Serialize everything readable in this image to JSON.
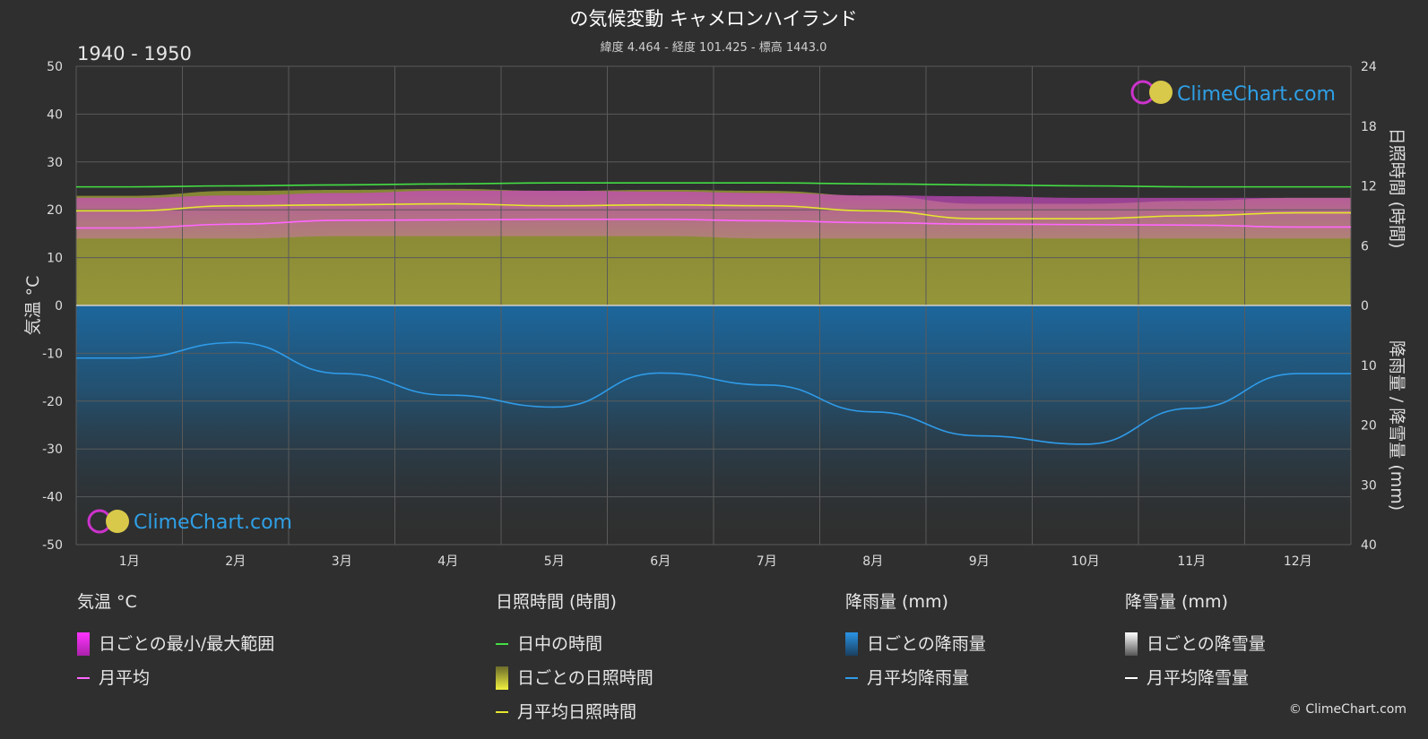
{
  "header": {
    "title": "の気候変動 キャメロンハイランド",
    "subtitle": "緯度 4.464 - 経度 101.425 - 標高 1443.0",
    "period": "1940 - 1950"
  },
  "brand": {
    "logo_text": "ClimeChart.com",
    "copyright": "© ClimeChart.com"
  },
  "chart_data": {
    "type": "area",
    "title": "の気候変動 キャメロンハイランド",
    "subtitle": "緯度 4.464 - 経度 101.425 - 標高 1443.0",
    "categories": [
      "1月",
      "2月",
      "3月",
      "4月",
      "5月",
      "6月",
      "7月",
      "8月",
      "9月",
      "10月",
      "11月",
      "12月"
    ],
    "y_left": {
      "label": "気温 °C",
      "range": [
        -50,
        50
      ],
      "ticks": [
        50,
        40,
        30,
        20,
        10,
        0,
        -10,
        -20,
        -30,
        -40,
        -50
      ]
    },
    "y_right_top": {
      "label": "日照時間 (時間)",
      "range": [
        0,
        24
      ],
      "ticks": [
        24,
        18,
        12,
        6,
        0
      ]
    },
    "y_right_bottom": {
      "label": "降雨量 / 降雪量 (mm)",
      "range": [
        0,
        40
      ],
      "ticks": [
        0,
        10,
        20,
        30,
        40
      ]
    },
    "grid": true,
    "series": [
      {
        "name": "日中の時間",
        "unit": "時間",
        "axis": "sunshine",
        "values": [
          11.9,
          12.0,
          12.1,
          12.2,
          12.3,
          12.3,
          12.3,
          12.2,
          12.1,
          12.0,
          11.9,
          11.9
        ]
      },
      {
        "name": "月平均日照時間",
        "unit": "時間",
        "axis": "sunshine",
        "values": [
          9.5,
          10.0,
          10.1,
          10.2,
          10.0,
          10.1,
          10.0,
          9.5,
          8.7,
          8.7,
          9.0,
          9.3
        ]
      },
      {
        "name": "月平均",
        "unit": "°C",
        "axis": "temperature",
        "values": [
          16.2,
          17.0,
          17.8,
          17.9,
          18.0,
          18.0,
          17.7,
          17.3,
          17.0,
          16.9,
          16.8,
          16.4
        ]
      },
      {
        "name": "日ごとの最小/最大範囲 (最大)",
        "unit": "°C",
        "axis": "temperature",
        "values": [
          22.5,
          23.0,
          23.5,
          24.0,
          24.0,
          23.8,
          23.5,
          23.0,
          22.8,
          22.5,
          22.5,
          22.5
        ]
      },
      {
        "name": "日ごとの最小/最大範囲 (最小)",
        "unit": "°C",
        "axis": "temperature",
        "values": [
          14.0,
          14.0,
          14.5,
          14.5,
          14.5,
          14.5,
          14.0,
          14.0,
          14.0,
          14.0,
          14.0,
          14.0
        ]
      },
      {
        "name": "月平均降雨量",
        "unit": "mm",
        "axis": "precipitation",
        "values": [
          8.8,
          6.2,
          11.4,
          15.0,
          17.0,
          11.3,
          13.3,
          17.8,
          21.8,
          23.2,
          17.2,
          11.4
        ]
      },
      {
        "name": "月平均降雪量",
        "unit": "mm",
        "axis": "precipitation",
        "values": [
          0,
          0,
          0,
          0,
          0,
          0,
          0,
          0,
          0,
          0,
          0,
          0
        ]
      }
    ]
  },
  "legend": {
    "temperature": {
      "heading": "気温 °C",
      "items": [
        {
          "label": "日ごとの最小/最大範囲",
          "kind": "box",
          "color": "#e040e0"
        },
        {
          "label": "月平均",
          "kind": "line",
          "color": "#ff66ff"
        }
      ]
    },
    "sunshine": {
      "heading": "日照時間 (時間)",
      "items": [
        {
          "label": "日中の時間",
          "kind": "line",
          "color": "#44dd44"
        },
        {
          "label": "日ごとの日照時間",
          "kind": "box",
          "color": "#c8c83a"
        },
        {
          "label": "月平均日照時間",
          "kind": "line",
          "color": "#e6e62e"
        }
      ]
    },
    "rain": {
      "heading": "降雨量 (mm)",
      "items": [
        {
          "label": "日ごとの降雨量",
          "kind": "box",
          "color": "#1f86d6"
        },
        {
          "label": "月平均降雨量",
          "kind": "line",
          "color": "#2f9be8"
        }
      ]
    },
    "snow": {
      "heading": "降雪量 (mm)",
      "items": [
        {
          "label": "日ごとの降雪量",
          "kind": "box",
          "color": "#cfcfcf"
        },
        {
          "label": "月平均降雪量",
          "kind": "line",
          "color": "#ffffff"
        }
      ]
    }
  }
}
